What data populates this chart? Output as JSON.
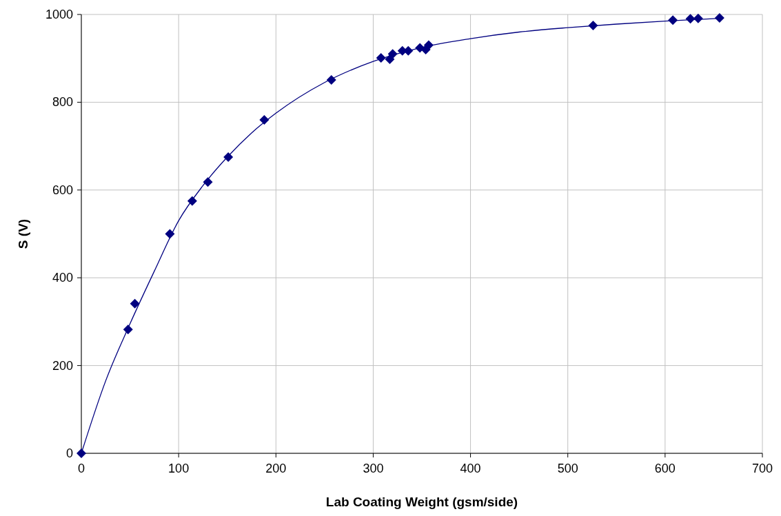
{
  "chart_data": {
    "type": "scatter",
    "xlabel": "Lab Coating Weight (gsm/side)",
    "ylabel": "S (V)",
    "xlim": [
      0,
      700
    ],
    "xticks": [
      0,
      100,
      200,
      300,
      400,
      500,
      600,
      700
    ],
    "ylim": [
      0,
      1000
    ],
    "yticks": [
      0,
      200,
      400,
      600,
      800,
      1000
    ],
    "grid": true,
    "marker": "diamond",
    "series": [
      {
        "color": "#000080",
        "x": [
          0,
          48,
          55,
          91,
          114,
          130,
          151,
          188,
          257,
          308,
          317,
          320,
          330,
          336,
          348,
          354,
          357,
          526,
          608,
          626,
          634,
          656
        ],
        "values": [
          0,
          282,
          341,
          500,
          575,
          618,
          675,
          760,
          851,
          901,
          898,
          910,
          917,
          917,
          924,
          920,
          930,
          975,
          987,
          990,
          991,
          992
        ]
      },
      {
        "type": "line",
        "color": "#000080",
        "marker": "none",
        "x": [
          0,
          25,
          50,
          75,
          100,
          125,
          150,
          175,
          200,
          250,
          300,
          350,
          400,
          450,
          500,
          550,
          600,
          656
        ],
        "values": [
          0,
          165,
          295,
          415,
          530,
          610,
          675,
          730,
          775,
          845,
          893,
          925,
          945,
          960,
          970,
          978,
          985,
          991
        ]
      }
    ]
  }
}
